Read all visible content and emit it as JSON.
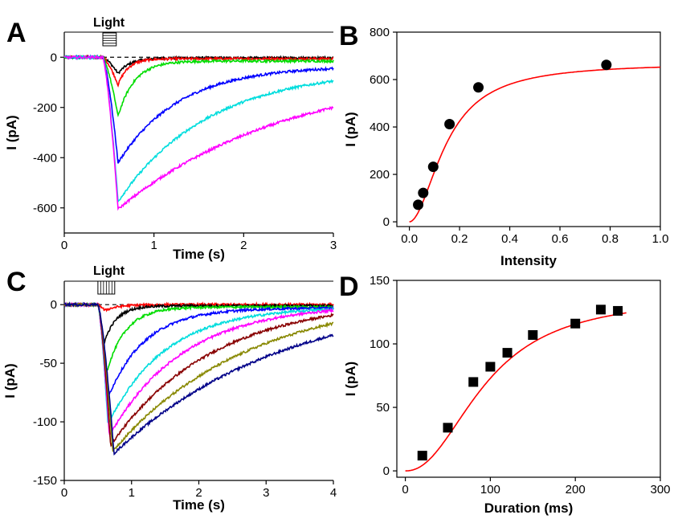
{
  "figure": {
    "light_label": "Light",
    "panels": [
      "A",
      "B",
      "C",
      "D"
    ]
  },
  "chart_data": [
    {
      "panel": "A",
      "type": "line",
      "xlabel": "Time (s)",
      "ylabel": "I (pA)",
      "xlim": [
        0,
        3
      ],
      "ylim": [
        -700,
        100
      ],
      "xticks": [
        0,
        1,
        2,
        3
      ],
      "yticks": [
        0,
        -200,
        -400,
        -600
      ],
      "stimulus_start": 0.43,
      "stimulus_end": 0.58,
      "peak_time": 0.6,
      "series": [
        {
          "color": "#000000",
          "peak": -65,
          "recovery": 0.13,
          "end": -3
        },
        {
          "color": "#ff0000",
          "peak": -110,
          "recovery": 0.11,
          "end": -6
        },
        {
          "color": "#00dd00",
          "peak": -235,
          "recovery": 0.18,
          "end": -15
        },
        {
          "color": "#0000ff",
          "peak": -420,
          "recovery": 0.68,
          "end": -45
        },
        {
          "color": "#00dddd",
          "peak": -575,
          "recovery": 1.0,
          "end": -95
        },
        {
          "color": "#ff00ff",
          "peak": -605,
          "recovery": 1.9,
          "end": -200
        }
      ]
    },
    {
      "panel": "B",
      "type": "scatter",
      "xlabel": "Intensity",
      "ylabel": "I (pA)",
      "xlim": [
        -0.05,
        1.0
      ],
      "ylim": [
        -20,
        800
      ],
      "xticks": [
        "0.0",
        "0.2",
        "0.4",
        "0.6",
        "0.8",
        "1.0"
      ],
      "yticks": [
        0,
        200,
        400,
        600,
        800
      ],
      "points": [
        {
          "x": 0.035,
          "y": 72
        },
        {
          "x": 0.055,
          "y": 122
        },
        {
          "x": 0.095,
          "y": 232
        },
        {
          "x": 0.16,
          "y": 412
        },
        {
          "x": 0.275,
          "y": 567
        },
        {
          "x": 0.785,
          "y": 662
        }
      ],
      "marker": "circle",
      "fit": {
        "color": "#ff0000",
        "max": 670,
        "k": 0.15,
        "n": 1.9,
        "x_range": [
          0,
          1.0
        ]
      }
    },
    {
      "panel": "C",
      "type": "line",
      "xlabel": "Time (s)",
      "ylabel": "I (pA)",
      "xlim": [
        0,
        4
      ],
      "ylim": [
        -150,
        20
      ],
      "xticks": [
        0,
        1,
        2,
        3,
        4
      ],
      "yticks": [
        0,
        -50,
        -100,
        -150
      ],
      "stimulus_start": 0.5,
      "stimulus_end": 0.75,
      "series": [
        {
          "color": "#ff0000",
          "peak": -5,
          "peak_time": 0.6,
          "recovery": 0.2,
          "end": 0
        },
        {
          "color": "#000000",
          "peak": -35,
          "peak_time": 0.58,
          "recovery": 0.18,
          "end": -1
        },
        {
          "color": "#00dd00",
          "peak": -62,
          "peak_time": 0.61,
          "recovery": 0.28,
          "end": -2
        },
        {
          "color": "#0000ff",
          "peak": -82,
          "peak_time": 0.63,
          "recovery": 0.55,
          "end": -3
        },
        {
          "color": "#00dddd",
          "peak": -102,
          "peak_time": 0.65,
          "recovery": 0.85,
          "end": -4
        },
        {
          "color": "#ff00ff",
          "peak": -112,
          "peak_time": 0.67,
          "recovery": 1.1,
          "end": -5
        },
        {
          "color": "#880000",
          "peak": -120,
          "peak_time": 0.69,
          "recovery": 1.5,
          "end": -9
        },
        {
          "color": "#888800",
          "peak": -125,
          "peak_time": 0.72,
          "recovery": 2.0,
          "end": -16
        },
        {
          "color": "#000088",
          "peak": -127,
          "peak_time": 0.74,
          "recovery": 2.5,
          "end": -26
        }
      ]
    },
    {
      "panel": "D",
      "type": "scatter",
      "xlabel": "Duration (ms)",
      "ylabel": "I (pA)",
      "xlim": [
        -10,
        300
      ],
      "ylim": [
        -5,
        150
      ],
      "xticks": [
        0,
        100,
        200,
        300
      ],
      "yticks": [
        0,
        50,
        100,
        150
      ],
      "points": [
        {
          "x": 20,
          "y": 12
        },
        {
          "x": 50,
          "y": 34
        },
        {
          "x": 80,
          "y": 70
        },
        {
          "x": 100,
          "y": 82
        },
        {
          "x": 120,
          "y": 93
        },
        {
          "x": 150,
          "y": 107
        },
        {
          "x": 200,
          "y": 116
        },
        {
          "x": 230,
          "y": 127
        },
        {
          "x": 250,
          "y": 126
        }
      ],
      "marker": "square",
      "fit": {
        "color": "#ff0000",
        "max": 138,
        "k": 95,
        "n": 2.2,
        "x_range": [
          0,
          260
        ]
      }
    }
  ]
}
